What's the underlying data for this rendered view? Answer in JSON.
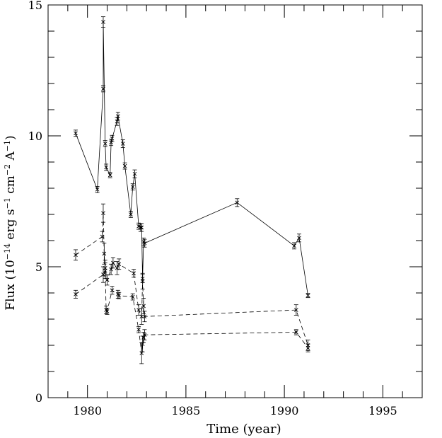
{
  "chart_data": {
    "type": "line",
    "title": "",
    "xlabel": "Time (year)",
    "ylabel_main": "Flux (10",
    "ylabel_exp1": "−14",
    "ylabel_mid": " erg s",
    "ylabel_exp2": "−1",
    "ylabel_mid2": " cm",
    "ylabel_exp3": "−2",
    "ylabel_mid3": " A",
    "ylabel_exp4": "−1",
    "ylabel_end": ")",
    "xlim": [
      1978,
      1997
    ],
    "ylim": [
      0,
      15
    ],
    "x_ticks": [
      1980,
      1985,
      1990,
      1995
    ],
    "x_tick_labels": [
      "1980",
      "1985",
      "1990",
      "1995"
    ],
    "y_ticks": [
      0,
      5,
      10,
      15
    ],
    "y_tick_labels": [
      "0",
      "5",
      "10",
      "15"
    ],
    "grid": false,
    "series": [
      {
        "style": "solid",
        "points": [
          {
            "x": 1979.4,
            "y": 10.1,
            "err": 0.12
          },
          {
            "x": 1980.5,
            "y": 7.95,
            "err": 0.12
          },
          {
            "x": 1980.8,
            "y": 11.8,
            "err": 0.12
          },
          {
            "x": 1980.8,
            "y": 14.35,
            "err": 0.2
          },
          {
            "x": 1980.9,
            "y": 9.7,
            "err": 0.12
          },
          {
            "x": 1980.95,
            "y": 8.8,
            "err": 0.12
          },
          {
            "x": 1981.15,
            "y": 8.5,
            "err": 0.1
          },
          {
            "x": 1981.2,
            "y": 9.75,
            "err": 0.12
          },
          {
            "x": 1981.25,
            "y": 9.9,
            "err": 0.12
          },
          {
            "x": 1981.5,
            "y": 10.55,
            "err": 0.15
          },
          {
            "x": 1981.55,
            "y": 10.75,
            "err": 0.15
          },
          {
            "x": 1981.8,
            "y": 9.7,
            "err": 0.15
          },
          {
            "x": 1981.9,
            "y": 8.85,
            "err": 0.12
          },
          {
            "x": 1982.2,
            "y": 7.0,
            "err": 0.12
          },
          {
            "x": 1982.3,
            "y": 8.05,
            "err": 0.12
          },
          {
            "x": 1982.4,
            "y": 8.55,
            "err": 0.15
          },
          {
            "x": 1982.6,
            "y": 6.55,
            "err": 0.12
          },
          {
            "x": 1982.7,
            "y": 6.5,
            "err": 0.15
          },
          {
            "x": 1982.75,
            "y": 6.5,
            "err": 0.15
          },
          {
            "x": 1982.8,
            "y": 4.55,
            "err": 0.15
          },
          {
            "x": 1982.85,
            "y": 5.95,
            "err": 0.15
          },
          {
            "x": 1982.9,
            "y": 5.9,
            "err": 0.15
          },
          {
            "x": 1987.6,
            "y": 7.45,
            "err": 0.15
          },
          {
            "x": 1990.5,
            "y": 5.8,
            "err": 0.12
          },
          {
            "x": 1990.75,
            "y": 6.1,
            "err": 0.15
          },
          {
            "x": 1991.2,
            "y": 3.9,
            "err": 0.08
          }
        ]
      },
      {
        "style": "dashed",
        "points": [
          {
            "x": 1979.4,
            "y": 5.45,
            "err": 0.2
          },
          {
            "x": 1980.75,
            "y": 6.15,
            "err": 0.2
          },
          {
            "x": 1980.8,
            "y": 7.05,
            "err": 0.35
          },
          {
            "x": 1980.85,
            "y": 5.5,
            "err": 0.4
          },
          {
            "x": 1980.9,
            "y": 4.95,
            "err": 0.3
          },
          {
            "x": 1981.0,
            "y": 4.5,
            "err": 0.2
          },
          {
            "x": 1981.2,
            "y": 4.9,
            "err": 0.2
          },
          {
            "x": 1981.3,
            "y": 5.15,
            "err": 0.2
          },
          {
            "x": 1981.5,
            "y": 4.95,
            "err": 0.25
          },
          {
            "x": 1981.6,
            "y": 5.1,
            "err": 0.2
          },
          {
            "x": 1982.35,
            "y": 4.75,
            "err": 0.15
          },
          {
            "x": 1982.6,
            "y": 3.35,
            "err": 0.2
          },
          {
            "x": 1982.75,
            "y": 3.1,
            "err": 0.3
          },
          {
            "x": 1982.8,
            "y": 4.45,
            "err": 0.3
          },
          {
            "x": 1982.85,
            "y": 3.5,
            "err": 0.3
          },
          {
            "x": 1982.9,
            "y": 3.1,
            "err": 0.2
          },
          {
            "x": 1990.6,
            "y": 3.35,
            "err": 0.2
          },
          {
            "x": 1991.2,
            "y": 2.0,
            "err": 0.2
          }
        ]
      },
      {
        "style": "dashed",
        "points": [
          {
            "x": 1979.4,
            "y": 3.95,
            "err": 0.15
          },
          {
            "x": 1980.8,
            "y": 4.7,
            "err": 0.3
          },
          {
            "x": 1980.9,
            "y": 4.85,
            "err": 0.3
          },
          {
            "x": 1980.95,
            "y": 3.35,
            "err": 0.15
          },
          {
            "x": 1981.0,
            "y": 3.3,
            "err": 0.12
          },
          {
            "x": 1981.25,
            "y": 4.1,
            "err": 0.15
          },
          {
            "x": 1981.55,
            "y": 3.95,
            "err": 0.15
          },
          {
            "x": 1981.6,
            "y": 3.9,
            "err": 0.12
          },
          {
            "x": 1982.3,
            "y": 3.85,
            "err": 0.12
          },
          {
            "x": 1982.6,
            "y": 2.6,
            "err": 0.12
          },
          {
            "x": 1982.75,
            "y": 1.7,
            "err": 0.4
          },
          {
            "x": 1982.8,
            "y": 2.05,
            "err": 0.3
          },
          {
            "x": 1982.85,
            "y": 2.3,
            "err": 0.2
          },
          {
            "x": 1982.9,
            "y": 2.4,
            "err": 0.2
          },
          {
            "x": 1990.6,
            "y": 2.5,
            "err": 0.1
          },
          {
            "x": 1991.2,
            "y": 1.9,
            "err": 0.15
          }
        ]
      }
    ]
  }
}
